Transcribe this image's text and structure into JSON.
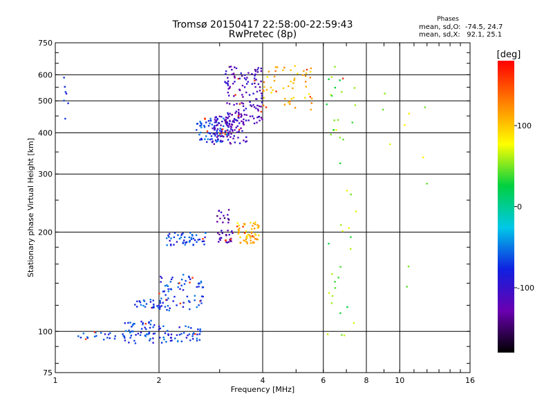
{
  "chart_data": {
    "type": "scatter",
    "title": "Tromsø 20150417 22:58:00-22:59:43",
    "subtitle": "RwPretec (8p)",
    "xlabel": "Frequency [MHz]",
    "ylabel": "Stationary phase Virtual Height [km]",
    "x_scale": "log",
    "y_scale": "log",
    "xlim": [
      1,
      16
    ],
    "ylim": [
      75,
      750
    ],
    "x_ticks": [
      1,
      2,
      4,
      6,
      8,
      10,
      16
    ],
    "x_tick_labels": [
      "1",
      "2",
      "4",
      "6",
      "8",
      "10",
      "16"
    ],
    "y_ticks": [
      75,
      100,
      200,
      300,
      400,
      500,
      600,
      750
    ],
    "y_tick_labels": [
      "75",
      "100",
      "200",
      "300",
      "400",
      "500",
      "600",
      "750"
    ],
    "grid": true,
    "colorbar": {
      "label": "[deg]",
      "range": [
        -180,
        180
      ],
      "ticks": [
        100,
        0,
        -100
      ],
      "tick_labels": [
        "100",
        "0",
        "-100"
      ],
      "colors": [
        "#000000",
        "#6a00b0",
        "#1020e0",
        "#00c8e8",
        "#00d040",
        "#ffff00",
        "#ff8000",
        "#ff0000"
      ]
    },
    "annotation": {
      "heading": "Phases",
      "line1": "mean, sd,O:  -74.5, 24.7",
      "line2": "mean, sd,X:   92.1, 25.1"
    },
    "clusters": [
      {
        "fmin": 1.12,
        "fmax": 1.6,
        "hmin": 94,
        "hmax": 100,
        "phase": -70,
        "n": 20
      },
      {
        "fmin": 1.55,
        "fmax": 2.05,
        "hmin": 92,
        "hmax": 108,
        "phase": -70,
        "n": 55
      },
      {
        "fmin": 2.0,
        "fmax": 2.65,
        "hmin": 93,
        "hmax": 104,
        "phase": -70,
        "n": 45
      },
      {
        "fmin": 1.7,
        "fmax": 2.1,
        "hmin": 118,
        "hmax": 125,
        "phase": -70,
        "n": 30
      },
      {
        "fmin": 2.0,
        "fmax": 2.7,
        "hmin": 115,
        "hmax": 150,
        "phase": -70,
        "n": 70
      },
      {
        "fmin": 2.1,
        "fmax": 2.75,
        "hmin": 182,
        "hmax": 200,
        "phase": -70,
        "n": 50
      },
      {
        "fmin": 2.9,
        "fmax": 3.2,
        "hmin": 212,
        "hmax": 240,
        "phase": -130,
        "n": 14
      },
      {
        "fmin": 2.95,
        "fmax": 3.3,
        "hmin": 185,
        "hmax": 203,
        "phase": -115,
        "n": 26
      },
      {
        "fmin": 3.35,
        "fmax": 3.9,
        "hmin": 185,
        "hmax": 215,
        "phase": 105,
        "n": 60
      },
      {
        "fmin": 2.55,
        "fmax": 3.2,
        "hmin": 375,
        "hmax": 445,
        "phase": -65,
        "n": 70
      },
      {
        "fmin": 2.85,
        "fmax": 3.6,
        "hmin": 370,
        "hmax": 460,
        "phase": -110,
        "n": 110
      },
      {
        "fmin": 3.1,
        "fmax": 4.0,
        "hmin": 420,
        "hmax": 640,
        "phase": -115,
        "n": 120
      },
      {
        "fmin": 4.0,
        "fmax": 5.6,
        "hmin": 470,
        "hmax": 640,
        "phase": 110,
        "n": 55
      },
      {
        "fmin": 1.05,
        "fmax": 1.1,
        "hmin": 370,
        "hmax": 590,
        "phase": -70,
        "n": 7
      },
      {
        "fmin": 6.1,
        "fmax": 7.5,
        "hmin": 95,
        "hmax": 650,
        "phase": 50,
        "n": 45
      },
      {
        "fmin": 8.5,
        "fmax": 12.5,
        "hmin": 130,
        "hmax": 560,
        "phase": 60,
        "n": 10
      }
    ]
  }
}
